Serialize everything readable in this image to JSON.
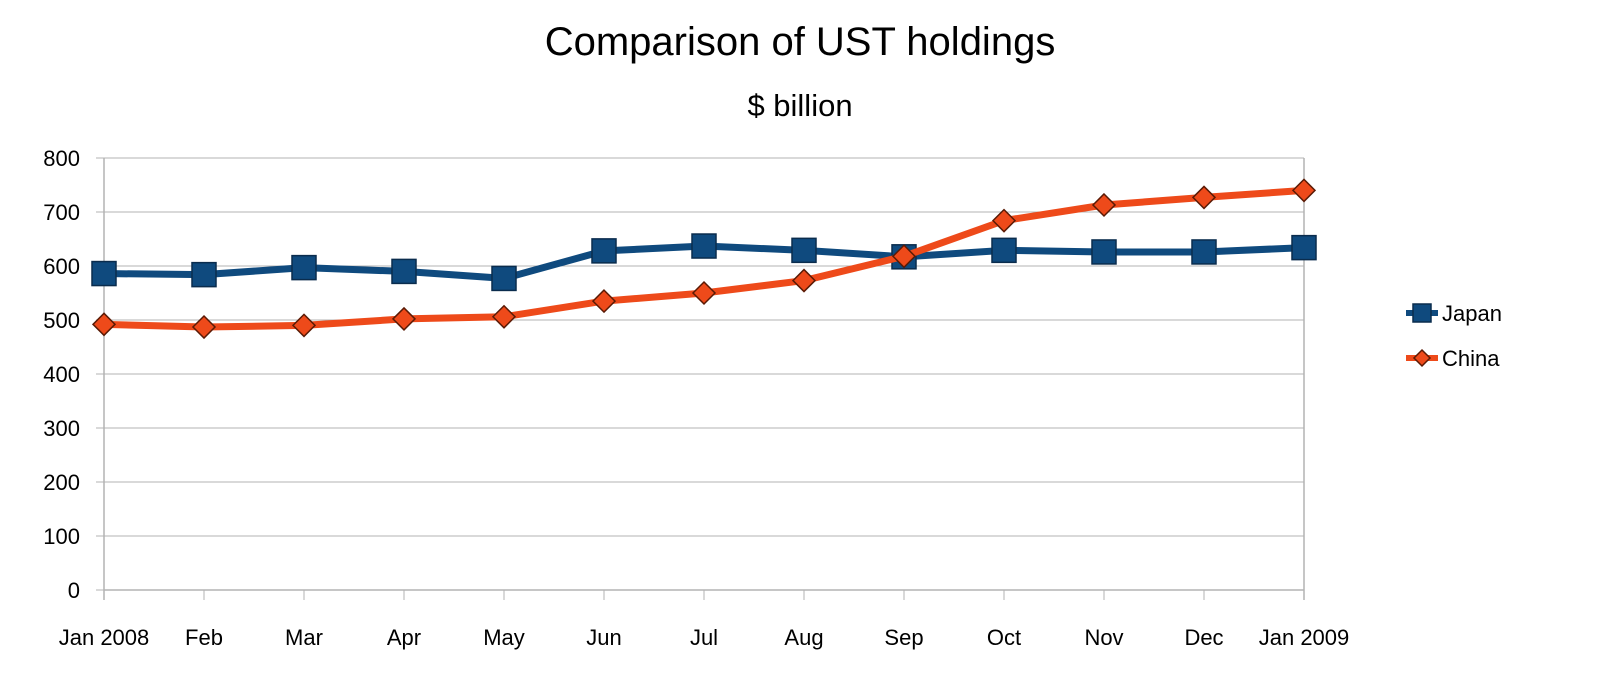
{
  "chart_data": {
    "type": "line",
    "title": "Comparison of UST holdings",
    "subtitle": "$ billion",
    "categories": [
      "Jan 2008",
      "Feb",
      "Mar",
      "Apr",
      "May",
      "Jun",
      "Jul",
      "Aug",
      "Sep",
      "Oct",
      "Nov",
      "Dec",
      "Jan 2009"
    ],
    "ylim": [
      0,
      800
    ],
    "yticks": [
      0,
      100,
      200,
      300,
      400,
      500,
      600,
      700,
      800
    ],
    "grid": true,
    "legend": "right",
    "series": [
      {
        "name": "Japan",
        "marker": "square",
        "color": "#0f4a7e",
        "values": [
          586,
          584,
          597,
          590,
          577,
          628,
          637,
          629,
          617,
          629,
          626,
          626,
          634
        ]
      },
      {
        "name": "China",
        "marker": "diamond",
        "color": "#ee4a1a",
        "values": [
          492,
          487,
          490,
          502,
          506,
          535,
          550,
          573,
          618,
          684,
          713,
          727,
          740
        ]
      }
    ]
  }
}
